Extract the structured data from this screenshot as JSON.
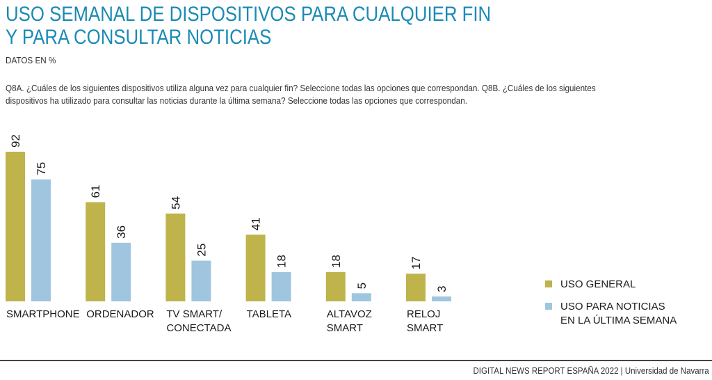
{
  "header": {
    "title_line1": "USO SEMANAL DE DISPOSITIVOS PARA CUALQUIER FIN",
    "title_line2": "Y PARA CONSULTAR NOTICIAS",
    "subtitle": "DATOS EN %",
    "question_line1": "Q8A. ¿Cuáles de los siguientes dispositivos utiliza alguna vez para cualquier fin? Seleccione todas las opciones que correspondan. Q8B. ¿Cuáles de los siguientes",
    "question_line2": "dispositivos ha utilizado para consultar las noticias  durante la última semana? Seleccione todas las opciones que correspondan."
  },
  "chart_data": {
    "type": "bar",
    "title": "USO SEMANAL DE DISPOSITIVOS PARA CUALQUIER FIN Y PARA CONSULTAR NOTICIAS",
    "xlabel": "",
    "ylabel": "",
    "ylim": [
      0,
      100
    ],
    "grid": false,
    "legend_position": "right",
    "categories": [
      [
        "SMARTPHONE"
      ],
      [
        "ORDENADOR"
      ],
      [
        "TV SMART/",
        "CONECTADA"
      ],
      [
        "TABLETA"
      ],
      [
        "ALTAVOZ",
        "SMART"
      ],
      [
        "RELOJ",
        "SMART"
      ]
    ],
    "series": [
      {
        "name": "USO GENERAL",
        "color": "#bfb34b",
        "values": [
          92,
          61,
          54,
          41,
          18,
          17
        ]
      },
      {
        "name": "USO PARA NOTICIAS EN LA ÚLTIMA SEMANA",
        "legend_lines": [
          "USO PARA NOTICIAS",
          "EN LA ÚLTIMA SEMANA"
        ],
        "color": "#9fc6de",
        "values": [
          75,
          36,
          25,
          18,
          5,
          3
        ]
      }
    ]
  },
  "footer": {
    "text": "DIGITAL NEWS REPORT ESPAÑA 2022 | Universidad de Navarra"
  }
}
